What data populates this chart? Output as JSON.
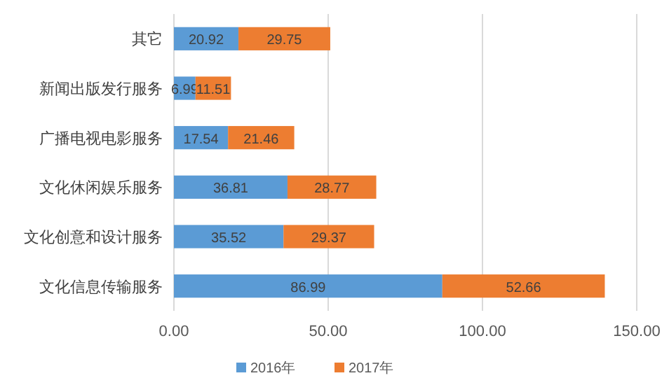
{
  "chart_data": {
    "type": "bar",
    "orientation": "horizontal",
    "stacked": true,
    "categories": [
      "其它",
      "新闻出版发行服务",
      "广播电视电影服务",
      "文化休闲娱乐服务",
      "文化创意和设计服务",
      "文化信息传输服务"
    ],
    "series": [
      {
        "name": "2016年",
        "color": "#5b9bd5",
        "values": [
          20.92,
          6.99,
          17.54,
          36.81,
          35.52,
          86.99
        ]
      },
      {
        "name": "2017年",
        "color": "#ed7d31",
        "values": [
          29.75,
          11.51,
          21.46,
          28.77,
          29.37,
          52.66
        ]
      }
    ],
    "xlim": [
      0,
      150
    ],
    "xticks": [
      {
        "value": 0,
        "label": "0.00"
      },
      {
        "value": 50,
        "label": "50.00"
      },
      {
        "value": 100,
        "label": "100.00"
      },
      {
        "value": 150,
        "label": "150.00"
      }
    ],
    "grid": "x",
    "legend": "bottom",
    "data_labels": true
  }
}
